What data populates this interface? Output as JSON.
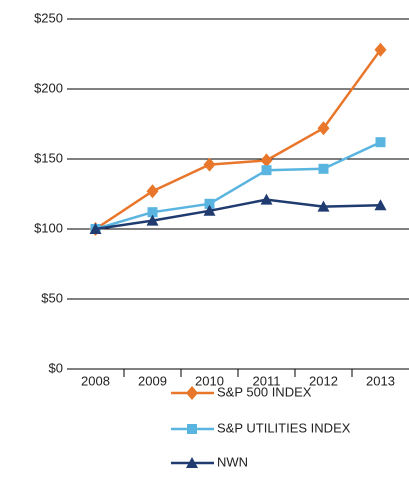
{
  "chart_data": {
    "type": "line",
    "categories": [
      "2008",
      "2009",
      "2010",
      "2011",
      "2012",
      "2013"
    ],
    "series": [
      {
        "name": "S&P 500 INDEX",
        "color": "#e8762b",
        "marker": "diamond",
        "values": [
          100,
          127,
          146,
          149,
          172,
          228
        ]
      },
      {
        "name": "S&P UTILITIES INDEX",
        "color": "#5ab4e0",
        "marker": "square",
        "values": [
          100,
          112,
          118,
          142,
          143,
          162
        ]
      },
      {
        "name": "NWN",
        "color": "#1f3b6f",
        "marker": "triangle",
        "values": [
          100,
          106,
          113,
          121,
          116,
          117
        ]
      }
    ],
    "ylim": [
      0,
      250
    ],
    "yticks": [
      {
        "value": 0,
        "label": "$0"
      },
      {
        "value": 50,
        "label": "$50"
      },
      {
        "value": 100,
        "label": "$100"
      },
      {
        "value": 150,
        "label": "$150"
      },
      {
        "value": 200,
        "label": "$200"
      },
      {
        "value": 250,
        "label": "$250"
      }
    ],
    "grid": true,
    "legend": "bottom"
  }
}
